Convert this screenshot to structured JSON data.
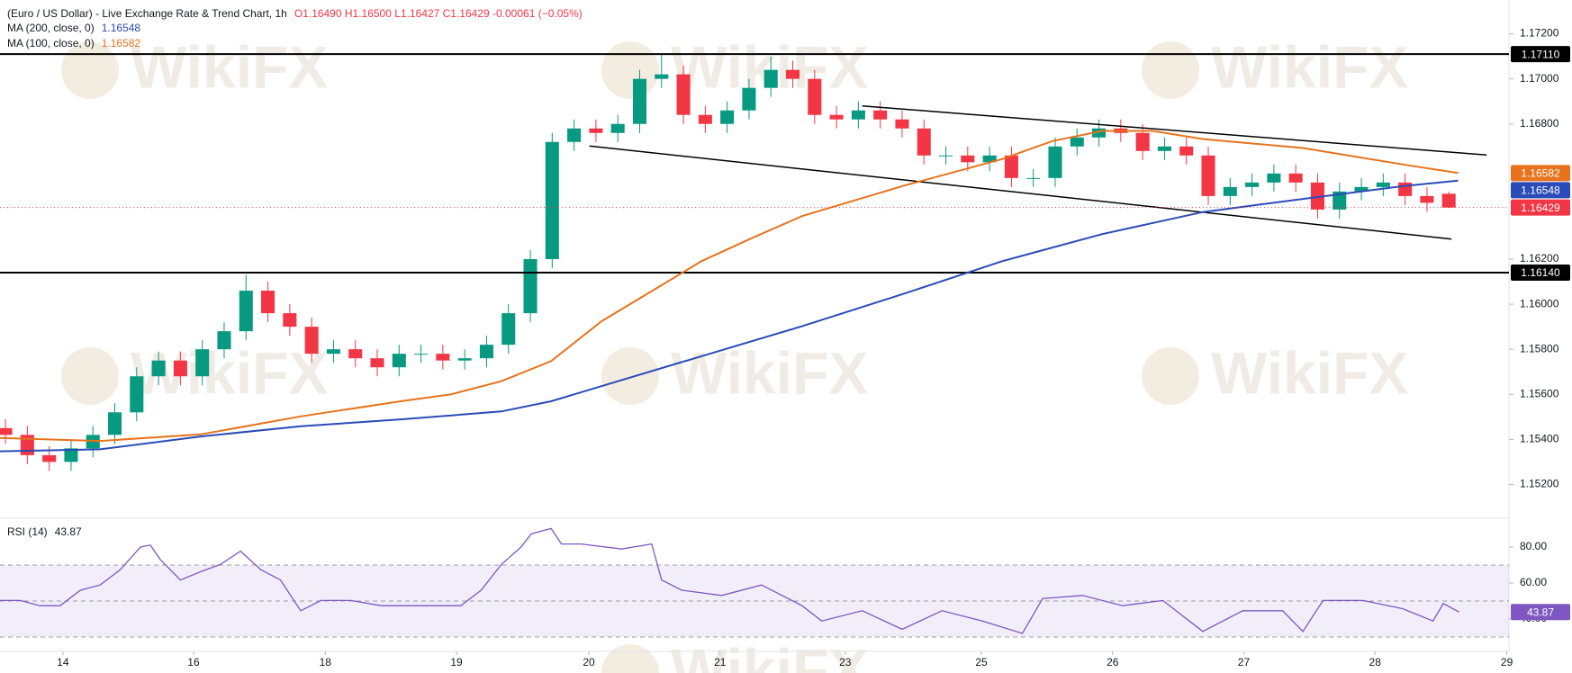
{
  "watermark": "WikiFX",
  "chart_data": [
    {
      "type": "candlestick",
      "title": "(Euro / US Dollar) - Live Exchange Rate & Trend Chart, 1h",
      "subtitle": "O1.16490 H1.16500 L1.16427 C1.16429 -0.00061 (−0.05%)",
      "up_color": "#089981",
      "down_color": "#f23645",
      "xlim": [
        0,
        276
      ],
      "ylim": [
        1.1505,
        1.1735
      ],
      "yticks": [
        {
          "value": 1.172,
          "label": "1.17200"
        },
        {
          "value": 1.17,
          "label": "1.17000"
        },
        {
          "value": 1.168,
          "label": "1.16800"
        },
        {
          "value": 1.162,
          "label": "1.16200"
        },
        {
          "value": 1.16,
          "label": "1.16000"
        },
        {
          "value": 1.158,
          "label": "1.15800"
        },
        {
          "value": 1.156,
          "label": "1.15600"
        },
        {
          "value": 1.154,
          "label": "1.15400"
        },
        {
          "value": 1.152,
          "label": "1.15200"
        }
      ],
      "x": [
        1,
        5,
        9,
        13,
        17,
        21,
        25,
        29,
        33,
        37,
        41,
        45,
        49,
        53,
        57,
        61,
        65,
        69,
        73,
        77,
        81,
        85,
        89,
        93,
        97,
        101,
        105,
        109,
        113,
        117,
        121,
        125,
        129,
        133,
        137,
        141,
        145,
        149,
        153,
        157,
        161,
        165,
        169,
        173,
        177,
        181,
        185,
        189,
        193,
        197,
        201,
        205,
        209,
        213,
        217,
        221,
        225,
        229,
        233,
        237,
        241,
        245,
        249,
        253,
        257,
        261,
        265
      ],
      "open": [
        1.1545,
        1.1542,
        1.1533,
        1.153,
        1.1536,
        1.1542,
        1.1552,
        1.1568,
        1.1575,
        1.1568,
        1.158,
        1.1588,
        1.1606,
        1.1596,
        1.159,
        1.1578,
        1.158,
        1.1576,
        1.1572,
        1.1578,
        1.1578,
        1.1575,
        1.1576,
        1.1582,
        1.1596,
        1.162,
        1.1672,
        1.1678,
        1.1676,
        1.168,
        1.17,
        1.1702,
        1.1684,
        1.168,
        1.1686,
        1.1696,
        1.1704,
        1.17,
        1.1684,
        1.1682,
        1.1686,
        1.1682,
        1.1678,
        1.1666,
        1.1666,
        1.1663,
        1.1666,
        1.1656,
        1.1656,
        1.167,
        1.1674,
        1.1678,
        1.1676,
        1.1668,
        1.167,
        1.1666,
        1.1648,
        1.1652,
        1.1654,
        1.1658,
        1.1654,
        1.1642,
        1.165,
        1.1652,
        1.1654,
        1.1648,
        1.1649
      ],
      "high": [
        1.1549,
        1.1546,
        1.1537,
        1.154,
        1.1546,
        1.1556,
        1.1572,
        1.1579,
        1.1579,
        1.1584,
        1.1592,
        1.1613,
        1.161,
        1.16,
        1.1594,
        1.1584,
        1.1584,
        1.158,
        1.1582,
        1.1582,
        1.1582,
        1.158,
        1.1586,
        1.16,
        1.1624,
        1.1676,
        1.1682,
        1.1682,
        1.1684,
        1.1704,
        1.1711,
        1.1706,
        1.1688,
        1.169,
        1.17,
        1.171,
        1.1708,
        1.1704,
        1.1688,
        1.169,
        1.169,
        1.1686,
        1.1682,
        1.167,
        1.167,
        1.167,
        1.167,
        1.166,
        1.1674,
        1.1678,
        1.1682,
        1.1682,
        1.168,
        1.1674,
        1.1674,
        1.167,
        1.1656,
        1.1658,
        1.1662,
        1.1662,
        1.1658,
        1.1654,
        1.1656,
        1.1658,
        1.1658,
        1.1652,
        1.165
      ],
      "low": [
        1.1538,
        1.1529,
        1.1526,
        1.1526,
        1.1532,
        1.1538,
        1.1548,
        1.1564,
        1.1564,
        1.1564,
        1.1576,
        1.1584,
        1.1592,
        1.1586,
        1.1574,
        1.1574,
        1.1572,
        1.1568,
        1.1568,
        1.1574,
        1.1571,
        1.1571,
        1.1572,
        1.1578,
        1.1592,
        1.1616,
        1.1668,
        1.1672,
        1.1672,
        1.1676,
        1.1696,
        1.168,
        1.1676,
        1.1676,
        1.1682,
        1.1692,
        1.1696,
        1.168,
        1.1678,
        1.1678,
        1.1678,
        1.1674,
        1.1662,
        1.1662,
        1.1659,
        1.1659,
        1.1652,
        1.1652,
        1.1652,
        1.1666,
        1.167,
        1.1672,
        1.1664,
        1.1664,
        1.1662,
        1.1644,
        1.1644,
        1.1648,
        1.165,
        1.165,
        1.1638,
        1.1638,
        1.1646,
        1.1648,
        1.1644,
        1.1641,
        1.16427
      ],
      "close": [
        1.1542,
        1.1533,
        1.153,
        1.1536,
        1.1542,
        1.1552,
        1.1568,
        1.1575,
        1.1568,
        1.158,
        1.1588,
        1.1606,
        1.1596,
        1.159,
        1.1578,
        1.158,
        1.1576,
        1.1572,
        1.1578,
        1.1578,
        1.1575,
        1.1576,
        1.1582,
        1.1596,
        1.162,
        1.1672,
        1.1678,
        1.1676,
        1.168,
        1.17,
        1.1702,
        1.1684,
        1.168,
        1.1686,
        1.1696,
        1.1704,
        1.17,
        1.1684,
        1.1682,
        1.1686,
        1.1682,
        1.1678,
        1.1666,
        1.1666,
        1.1663,
        1.1666,
        1.1656,
        1.1656,
        1.167,
        1.1674,
        1.1678,
        1.1676,
        1.1668,
        1.167,
        1.1666,
        1.1648,
        1.1652,
        1.1654,
        1.1658,
        1.1654,
        1.1642,
        1.165,
        1.1652,
        1.1654,
        1.1648,
        1.1645,
        1.16429
      ],
      "series": [
        {
          "name": "MA (200, close, 0)",
          "color": "#2a4bb8",
          "x": [
            0,
            18.3,
            36.7,
            55,
            73.3,
            91.7,
            100.8,
            110,
            128.3,
            146.7,
            165,
            183.3,
            201.6,
            220,
            238.3,
            256.6,
            266.7
          ],
          "values": [
            1.15347,
            1.15356,
            1.15413,
            1.15458,
            1.15489,
            1.15524,
            1.15569,
            1.15636,
            1.15769,
            1.15902,
            1.16044,
            1.16191,
            1.16311,
            1.16409,
            1.16467,
            1.16524,
            1.16548
          ]
        },
        {
          "name": "MA (100, close, 0)",
          "color": "#e8731c",
          "x": [
            0,
            18.3,
            36.7,
            55,
            73.3,
            82.5,
            91.7,
            100.8,
            110,
            119.2,
            128.3,
            137.5,
            146.7,
            165,
            183.3,
            192.5,
            201.6,
            210.8,
            220,
            238.3,
            256.6,
            266.7
          ],
          "values": [
            1.15406,
            1.15393,
            1.15422,
            1.15502,
            1.15569,
            1.156,
            1.15658,
            1.15747,
            1.15924,
            1.16058,
            1.16191,
            1.16293,
            1.16391,
            1.16524,
            1.16644,
            1.16724,
            1.16769,
            1.16769,
            1.16733,
            1.16693,
            1.1662,
            1.16582
          ]
        }
      ],
      "hlines": [
        {
          "value": 1.1711,
          "label": "1.17110"
        },
        {
          "value": 1.1614,
          "label": "1.16140"
        }
      ],
      "trendlines": [
        {
          "x": [
            157.7,
            271.9
          ],
          "values": [
            1.1688,
            1.16662
          ]
        },
        {
          "x": [
            107.8,
            265.5
          ],
          "values": [
            1.16702,
            1.16289
          ]
        }
      ]
    },
    {
      "type": "line",
      "xlim": [
        0,
        276
      ],
      "ylim": [
        22,
        96
      ],
      "yticks": [
        {
          "value": 80,
          "label": "80.00"
        },
        {
          "value": 60,
          "label": "60.00"
        },
        {
          "value": 40,
          "label": "40.00"
        }
      ],
      "levels": [
        70,
        50,
        30
      ],
      "band_color": "#7e57c2",
      "xticks": [
        {
          "value": 11.5,
          "label": "14"
        },
        {
          "value": 35.4,
          "label": "16"
        },
        {
          "value": 59.5,
          "label": "18"
        },
        {
          "value": 83.5,
          "label": "19"
        },
        {
          "value": 107.7,
          "label": "20"
        },
        {
          "value": 131.7,
          "label": "21"
        },
        {
          "value": 154.6,
          "label": "23"
        },
        {
          "value": 179.5,
          "label": "25"
        },
        {
          "value": 203.5,
          "label": "26"
        },
        {
          "value": 227.5,
          "label": "27"
        },
        {
          "value": 251.5,
          "label": "28"
        },
        {
          "value": 275.6,
          "label": "29"
        }
      ],
      "series": [
        {
          "name": "RSI (14)",
          "color": "#7e57c2",
          "x": [
            0,
            3.7,
            7.3,
            11,
            14.7,
            18.3,
            22,
            25.7,
            27.5,
            29.3,
            33,
            36.7,
            40.3,
            44,
            47.7,
            51.3,
            55,
            58.7,
            64.2,
            69.7,
            77,
            84.3,
            88,
            91.7,
            95.3,
            97.2,
            100.8,
            102.7,
            106.3,
            113.7,
            119.2,
            121,
            124.7,
            132,
            139.3,
            146.7,
            150.3,
            157.7,
            165,
            172.3,
            179.7,
            187,
            190.7,
            198,
            205.3,
            212.7,
            220,
            227.3,
            234.6,
            238.3,
            242,
            249.3,
            256.6,
            262.1,
            264,
            266.9
          ],
          "values": [
            50.3,
            50.3,
            47.4,
            47.4,
            56.0,
            58.9,
            67.4,
            80.0,
            81.1,
            73.1,
            61.7,
            66.3,
            70.3,
            77.7,
            67.4,
            61.7,
            44.6,
            50.3,
            50.3,
            47.4,
            47.4,
            47.4,
            56.0,
            70.3,
            80.0,
            87.4,
            90.3,
            81.7,
            81.7,
            78.9,
            81.7,
            61.7,
            56.0,
            53.1,
            58.9,
            47.4,
            38.9,
            44.6,
            34.3,
            44.6,
            38.9,
            32.0,
            51.4,
            53.1,
            47.4,
            50.3,
            33.1,
            44.6,
            44.6,
            33.1,
            50.3,
            50.3,
            45.7,
            38.9,
            48.6,
            43.87
          ]
        }
      ]
    }
  ]
}
